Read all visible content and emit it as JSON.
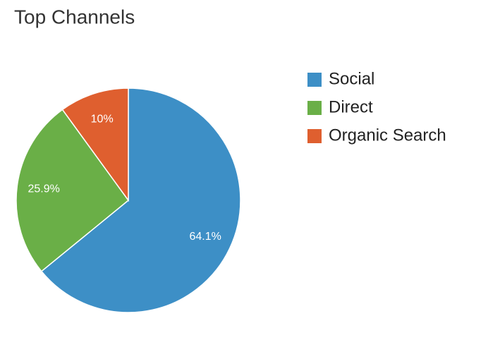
{
  "chart_data": {
    "type": "pie",
    "title": "Top Channels",
    "categories": [
      "Social",
      "Direct",
      "Organic Search"
    ],
    "values": [
      64.1,
      25.9,
      10
    ],
    "value_labels": [
      "64.1%",
      "25.9%",
      "10%"
    ],
    "colors": [
      "#3d8fc6",
      "#6aaf47",
      "#df5f2f"
    ],
    "legend": "right"
  }
}
